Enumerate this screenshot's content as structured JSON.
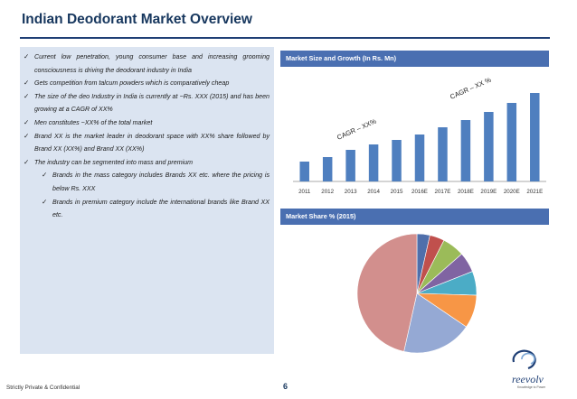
{
  "title": "Indian Deodorant Market Overview",
  "bullets": [
    {
      "text": "Current low penetration, young consumer base and increasing grooming consciousness is driving the deodorant industry in India",
      "level": 1
    },
    {
      "text": "Gets competition from talcum powders which is comparatively cheap",
      "level": 1
    },
    {
      "text": "The size of the deo Industry in India is currently at ~Rs. XXX (2015) and has been growing at a CAGR of XX%",
      "level": 1
    },
    {
      "text": "Men constitutes ~XX% of the total market",
      "level": 1
    },
    {
      "text": "Brand XX is the market leader in deodorant space with XX% share followed by Brand XX (XX%) and Brand XX (XX%)",
      "level": 1
    },
    {
      "text": "The industry can be segmented into mass and premium",
      "level": 1
    },
    {
      "text": "Brands in the mass category includes Brands XX etc. where the pricing is below Rs. XXX",
      "level": 2
    },
    {
      "text": "Brands in premium category include the international brands like Brand XX etc.",
      "level": 2
    }
  ],
  "check_glyph": "✓",
  "market_size_header": "Market Size and Growth (In Rs. Mn)",
  "market_share_header": "Market Share % (2015)",
  "cagr_labels": [
    "CAGR – XX%",
    "CAGR – XX %"
  ],
  "footer": {
    "confidential": "Strictly Private & Confidential",
    "page": "6"
  },
  "logo": {
    "name": "reevolv",
    "tagline": "Knowledge to Power"
  },
  "colors": {
    "bar": "#4f7fbf",
    "header": "#4a6fb1",
    "title": "#17375e",
    "panel": "#dbe4f1"
  },
  "chart_data": [
    {
      "type": "bar",
      "title": "Market Size and Growth (In Rs. Mn)",
      "categories": [
        "2011",
        "2012",
        "2013",
        "2014",
        "2015",
        "2016E",
        "2017E",
        "2018E",
        "2019E",
        "2020E",
        "2021E"
      ],
      "values": [
        22,
        27,
        35,
        41,
        46,
        52,
        60,
        68,
        77,
        87,
        98
      ],
      "ylim": [
        0,
        110
      ],
      "grid": false,
      "annotations": [
        "CAGR – XX%",
        "CAGR – XX %"
      ]
    },
    {
      "type": "pie",
      "title": "Market Share % (2015)",
      "values": [
        3.5,
        4,
        6,
        5.5,
        6.5,
        9,
        19,
        46.5
      ],
      "colors": [
        "#4f6fab",
        "#c0504d",
        "#9bbb59",
        "#8064a2",
        "#4bacc6",
        "#f79646",
        "#95a9d4",
        "#d28f8d"
      ]
    }
  ]
}
